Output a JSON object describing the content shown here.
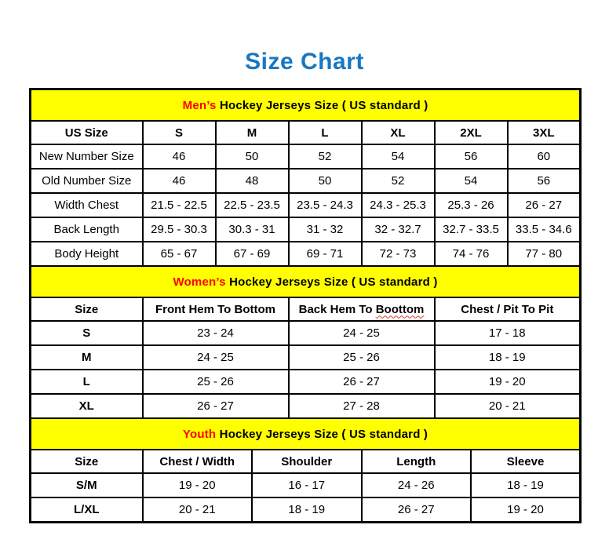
{
  "page_title": "Size Chart",
  "colors": {
    "title_blue": "#1777c2",
    "section_yellow": "#ffff00",
    "accent_red": "#ff0000",
    "border_black": "#000000"
  },
  "tables": [
    {
      "name": "mens",
      "accent": "Men’s",
      "title_rest": "Hockey Jerseys Size ( US standard )",
      "bold_row_labels": false,
      "spellcheck_word": null,
      "columns": [
        "US Size",
        "S",
        "M",
        "L",
        "XL",
        "2XL",
        "3XL"
      ],
      "rows": [
        [
          "New Number Size",
          "46",
          "50",
          "52",
          "54",
          "56",
          "60"
        ],
        [
          "Old Number Size",
          "46",
          "48",
          "50",
          "52",
          "54",
          "56"
        ],
        [
          "Width Chest",
          "21.5 - 22.5",
          "22.5 - 23.5",
          "23.5 - 24.3",
          "24.3 - 25.3",
          "25.3 - 26",
          "26 - 27"
        ],
        [
          "Back Length",
          "29.5 - 30.3",
          "30.3 - 31",
          "31 - 32",
          "32 - 32.7",
          "32.7 - 33.5",
          "33.5 - 34.6"
        ],
        [
          "Body Height",
          "65 - 67",
          "67 - 69",
          "69 - 71",
          "72 - 73",
          "74 - 76",
          "77 - 80"
        ]
      ]
    },
    {
      "name": "womens",
      "accent": "Women’s",
      "title_rest": "Hockey Jerseys Size ( US standard )",
      "bold_row_labels": true,
      "spellcheck_word": "Boottom",
      "columns": [
        "Size",
        "Front Hem To Bottom",
        "Back Hem To Boottom",
        "Chest / Pit To Pit"
      ],
      "rows": [
        [
          "S",
          "23 - 24",
          "24 - 25",
          "17 - 18"
        ],
        [
          "M",
          "24 - 25",
          "25 - 26",
          "18 - 19"
        ],
        [
          "L",
          "25 - 26",
          "26 - 27",
          "19 - 20"
        ],
        [
          "XL",
          "26 - 27",
          "27 - 28",
          "20 - 21"
        ]
      ]
    },
    {
      "name": "youth",
      "accent": "Youth",
      "title_rest": "Hockey Jerseys Size ( US standard )",
      "bold_row_labels": true,
      "spellcheck_word": null,
      "columns": [
        "Size",
        "Chest / Width",
        "Shoulder",
        "Length",
        "Sleeve"
      ],
      "rows": [
        [
          "S/M",
          "19 - 20",
          "16 - 17",
          "24 - 26",
          "18 - 19"
        ],
        [
          "L/XL",
          "20 - 21",
          "18 - 19",
          "26 - 27",
          "19 - 20"
        ]
      ]
    }
  ]
}
